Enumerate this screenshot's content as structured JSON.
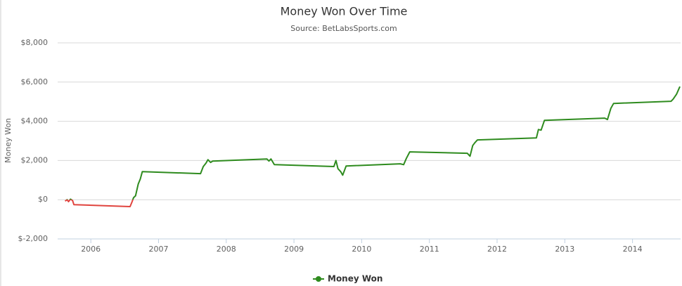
{
  "chart_data": {
    "type": "line",
    "title": "Money Won Over Time",
    "subtitle": "Source: BetLabsSports.com",
    "y_label": "Money Won",
    "x": [
      2005.62,
      2005.65,
      2005.67,
      2005.7,
      2005.73,
      2005.75,
      2006.58,
      2006.61,
      2006.63,
      2006.66,
      2006.7,
      2006.73,
      2006.76,
      2007.62,
      2007.66,
      2007.7,
      2007.73,
      2007.77,
      2007.8,
      2008.6,
      2008.63,
      2008.66,
      2008.71,
      2009.59,
      2009.62,
      2009.65,
      2009.69,
      2009.72,
      2009.77,
      2010.57,
      2010.62,
      2010.66,
      2010.71,
      2011.56,
      2011.6,
      2011.64,
      2011.67,
      2011.71,
      2012.58,
      2012.61,
      2012.65,
      2012.7,
      2013.59,
      2013.63,
      2013.68,
      2013.72,
      2014.57,
      2014.6,
      2014.65,
      2014.7
    ],
    "series": [
      {
        "name": "Money Won",
        "color": "#2e8b1e",
        "negative_color": "#e0443e",
        "values": [
          -70,
          0,
          -100,
          30,
          -40,
          -250,
          -350,
          -100,
          100,
          200,
          800,
          1050,
          1430,
          1330,
          1690,
          1860,
          2040,
          1900,
          1970,
          2080,
          1970,
          2080,
          1790,
          1690,
          2000,
          1580,
          1430,
          1250,
          1720,
          1830,
          1790,
          2110,
          2440,
          2370,
          2220,
          2760,
          2900,
          3050,
          3150,
          3580,
          3550,
          4050,
          4160,
          4090,
          4660,
          4910,
          5020,
          5130,
          5380,
          5770
        ]
      }
    ],
    "xlim": [
      2005.51,
      2014.71
    ],
    "xticks": [
      2006,
      2007,
      2008,
      2009,
      2010,
      2011,
      2012,
      2013,
      2014
    ],
    "ylim": [
      -2000,
      8000
    ],
    "yticks": [
      {
        "value": -2000,
        "label": "$-2,000"
      },
      {
        "value": 0,
        "label": "$0"
      },
      {
        "value": 2000,
        "label": "$2,000"
      },
      {
        "value": 4000,
        "label": "$4,000"
      },
      {
        "value": 6000,
        "label": "$6,000"
      },
      {
        "value": 8000,
        "label": "$8,000"
      }
    ],
    "grid": true,
    "legend": "bottom"
  }
}
